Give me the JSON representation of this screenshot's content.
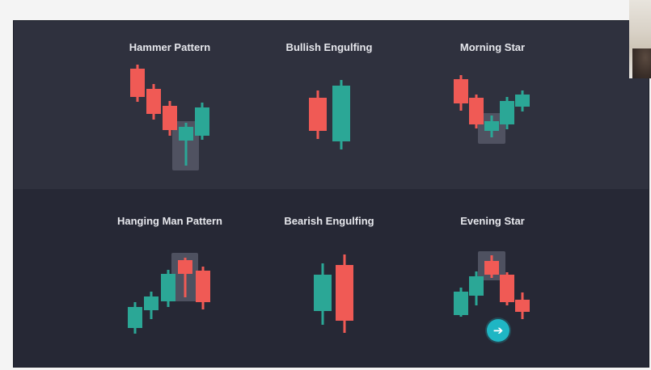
{
  "colors": {
    "bullish": "#2ba796",
    "bearish": "#f05a55",
    "highlight": "#565867",
    "panel_top": "#2f313e",
    "panel_bottom": "#262835",
    "title_text": "#e6e7ec",
    "nav_button": "#1fb6c4"
  },
  "patterns": [
    {
      "id": "hammer",
      "title": "Hammer Pattern"
    },
    {
      "id": "bullish-engulfing",
      "title": "Bullish Engulfing"
    },
    {
      "id": "morning-star",
      "title": "Morning Star"
    },
    {
      "id": "hanging-man",
      "title": "Hanging Man Pattern"
    },
    {
      "id": "bearish-engulfing",
      "title": "Bearish Engulfing"
    },
    {
      "id": "evening-star",
      "title": "Evening Star"
    }
  ],
  "nav_button": {
    "icon": "arrow-right-icon",
    "glyph": "➔"
  }
}
